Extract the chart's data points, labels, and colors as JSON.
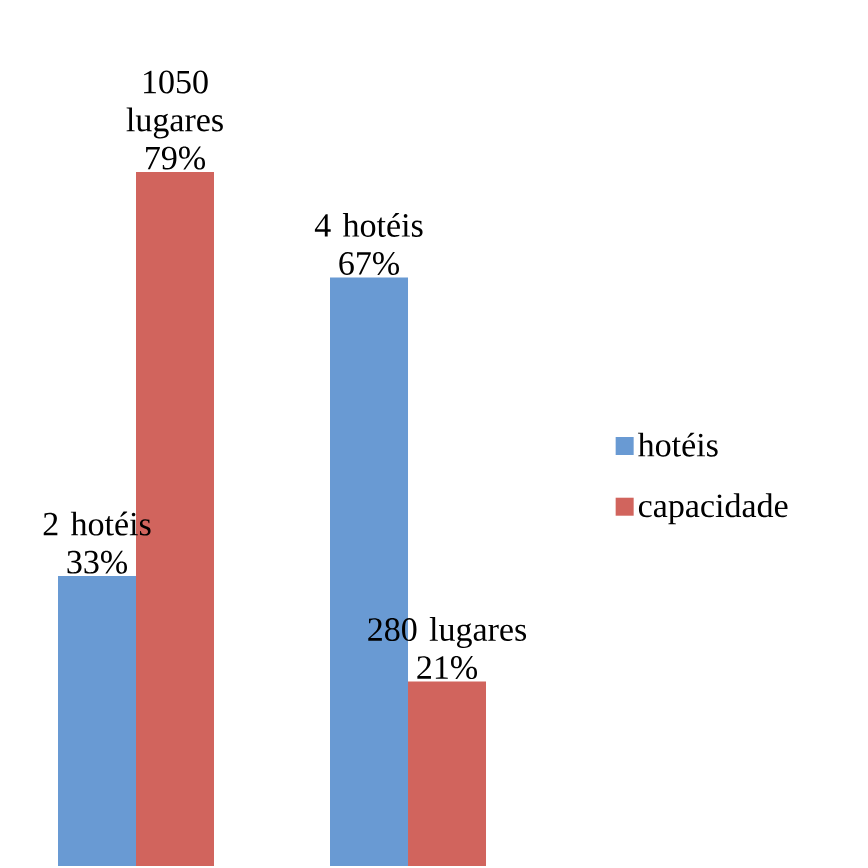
{
  "chart_data": {
    "type": "bar",
    "categories": [
      null,
      null
    ],
    "ylim": [
      0,
      79
    ],
    "legend": "right",
    "series": [
      {
        "name": "hotéis",
        "color": "#699ad3",
        "values": [
          33,
          67
        ],
        "value_labels": [
          "2 hotéis 33%",
          "4 hotéis 67%"
        ]
      },
      {
        "name": "capacidade",
        "color": "#d1645d",
        "values": [
          79,
          21
        ],
        "value_labels": [
          "1050 lugares 79%",
          "280 lugares 21%"
        ]
      }
    ]
  }
}
